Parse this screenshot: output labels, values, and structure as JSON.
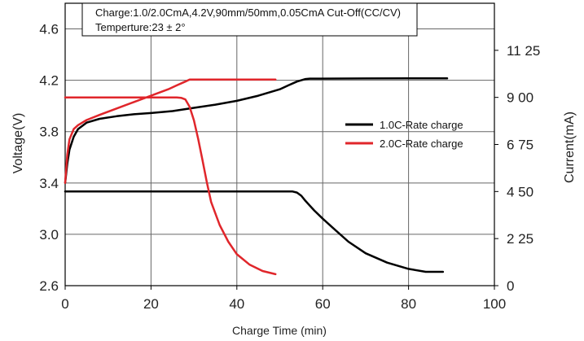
{
  "chart_data": {
    "type": "line",
    "title": "",
    "annotations": [
      "Charge:1.0/2.0CmA,4.2V,90mm/50mm,0.05CmA Cut-Off(CC/CV)",
      "Temperture:23 ± 2°"
    ],
    "xlabel": "Charge Time (min)",
    "ylabel_left": "Voltage(V)",
    "ylabel_right": "Current(mA)",
    "xlim": [
      0,
      100
    ],
    "ylim_left": [
      2.6,
      4.8
    ],
    "ylim_right": [
      0,
      1350
    ],
    "x_ticks": [
      "0",
      "20",
      "40",
      "60",
      "80",
      "100"
    ],
    "y_left_ticks": [
      "2.6",
      "3.0",
      "3.4",
      "3.8",
      "4.2",
      "4.6"
    ],
    "y_right_ticks": [
      "0",
      "2 25",
      "4 50",
      "6 75",
      "9 00",
      "11 25"
    ],
    "grid": true,
    "legend": {
      "placement": "right",
      "entries": [
        {
          "label": "1.0C-Rate charge",
          "color": "#000000"
        },
        {
          "label": "2.0C-Rate charge",
          "color": "#e0262b"
        }
      ]
    },
    "series": [
      {
        "name": "1.0C-Rate charge",
        "color": "#000000",
        "voltage": {
          "x": [
            0,
            0.5,
            1,
            2,
            3,
            5,
            8,
            12,
            16,
            20,
            25,
            30,
            35,
            40,
            45,
            50,
            52,
            54,
            56,
            57,
            60,
            70,
            80,
            89
          ],
          "y": [
            3.4,
            3.55,
            3.66,
            3.76,
            3.82,
            3.87,
            3.9,
            3.92,
            3.935,
            3.945,
            3.96,
            3.985,
            4.01,
            4.04,
            4.08,
            4.13,
            4.16,
            4.19,
            4.21,
            4.213,
            4.213,
            4.214,
            4.215,
            4.215
          ]
        },
        "current": {
          "x": [
            0,
            10,
            20,
            30,
            40,
            50,
            53,
            54,
            55,
            56,
            58,
            60,
            63,
            66,
            70,
            75,
            80,
            84,
            88
          ],
          "y": [
            450,
            450,
            450,
            450,
            450,
            450,
            450,
            445,
            430,
            405,
            360,
            320,
            265,
            210,
            155,
            110,
            80,
            66,
            66
          ]
        }
      },
      {
        "name": "2.0C-Rate charge",
        "color": "#e0262b",
        "voltage": {
          "x": [
            0,
            0.5,
            1,
            2,
            3,
            5,
            8,
            12,
            16,
            20,
            24,
            26,
            28,
            29,
            30,
            35,
            40,
            45,
            49
          ],
          "y": [
            3.4,
            3.62,
            3.74,
            3.82,
            3.85,
            3.89,
            3.93,
            3.98,
            4.03,
            4.08,
            4.13,
            4.16,
            4.19,
            4.205,
            4.205,
            4.205,
            4.205,
            4.205,
            4.205
          ]
        },
        "current": {
          "x": [
            0,
            10,
            20,
            26,
            27,
            28,
            29,
            30,
            31,
            32,
            33,
            34,
            36,
            38,
            40,
            43,
            46,
            49
          ],
          "y": [
            900,
            900,
            900,
            900,
            898,
            890,
            855,
            790,
            700,
            600,
            495,
            400,
            290,
            210,
            150,
            100,
            70,
            55
          ]
        }
      }
    ]
  }
}
